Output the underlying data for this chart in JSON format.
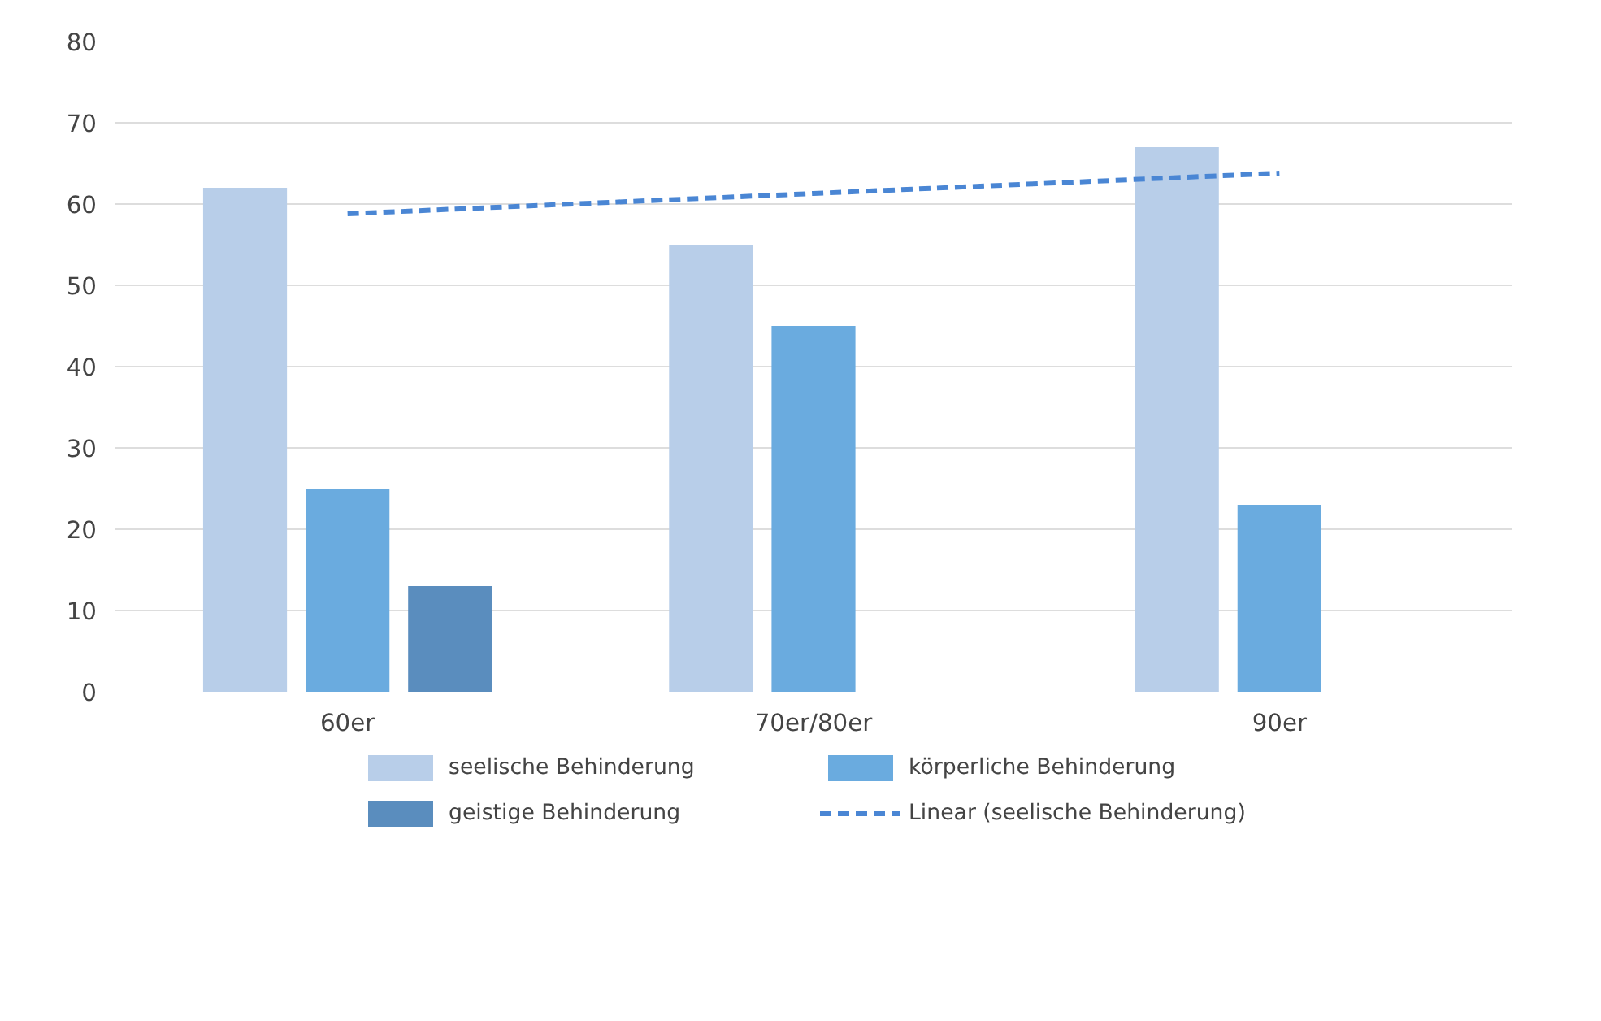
{
  "chart_data": {
    "type": "bar",
    "categories": [
      "60er",
      "70er/80er",
      "90er"
    ],
    "series": [
      {
        "name": "seelische Behinderung",
        "color": "#b8cee9",
        "values": [
          62,
          55,
          67
        ]
      },
      {
        "name": "körperliche Behinderung",
        "color": "#6aabdf",
        "values": [
          25,
          45,
          23
        ]
      },
      {
        "name": "geistige Behinderung",
        "color": "#5a8dbe",
        "values": [
          13,
          null,
          null
        ]
      },
      {
        "name": "Linear (seelische Behinderung)",
        "type": "line",
        "line_style": "dashed",
        "color": "#4a86d4",
        "values": [
          58.8,
          61.3,
          63.8
        ]
      }
    ],
    "ylim": [
      0,
      80
    ],
    "yticks": [
      0,
      10,
      20,
      30,
      40,
      50,
      60,
      70,
      80
    ],
    "grid": "y",
    "legend": "bottom"
  }
}
